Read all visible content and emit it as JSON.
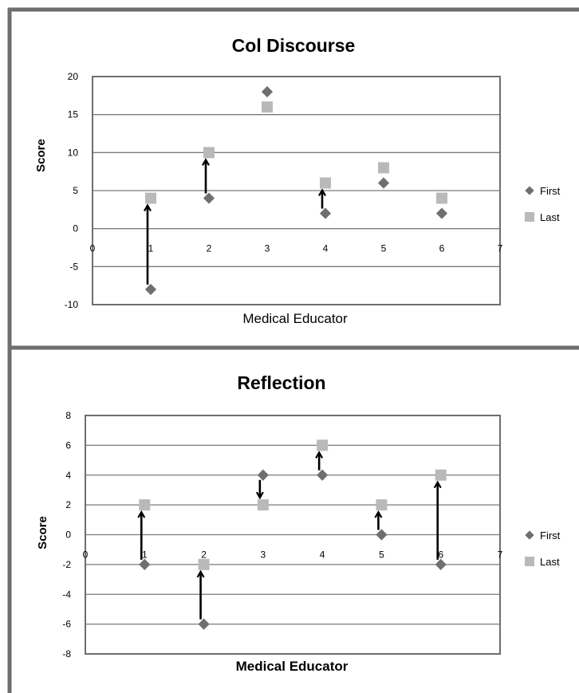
{
  "colors": {
    "first": "#6f6f6f",
    "last": "#b9b9b9",
    "arrow": "#000000",
    "frame": "#6e6e6e",
    "grid": "#7a7a7a"
  },
  "chart_data": [
    {
      "type": "scatter",
      "title": "Col Discourse",
      "xlabel": "Medical Educator",
      "ylabel": "Score",
      "xlim": [
        0,
        7
      ],
      "ylim": [
        -10,
        20
      ],
      "xticks": [
        0,
        1,
        2,
        3,
        4,
        5,
        6,
        7
      ],
      "yticks": [
        -10,
        -5,
        0,
        5,
        10,
        15,
        20
      ],
      "grid": true,
      "legend_position": "right",
      "series": [
        {
          "name": "First",
          "marker": "diamond",
          "x": [
            1,
            2,
            3,
            4,
            5,
            6
          ],
          "y": [
            -8,
            4,
            18,
            2,
            6,
            2
          ]
        },
        {
          "name": "Last",
          "marker": "square",
          "x": [
            1,
            2,
            3,
            4,
            5,
            6
          ],
          "y": [
            4,
            10,
            16,
            6,
            8,
            4
          ]
        }
      ],
      "arrows": [
        {
          "x": 1,
          "from": -8,
          "to": 4
        },
        {
          "x": 2,
          "from": 4,
          "to": 10
        },
        {
          "x": 4,
          "from": 2,
          "to": 6
        }
      ]
    },
    {
      "type": "scatter",
      "title": "Reflection",
      "xlabel": "Medical Educator",
      "ylabel": "Score",
      "xlim": [
        0,
        7
      ],
      "ylim": [
        -8,
        8
      ],
      "xticks": [
        0,
        1,
        2,
        3,
        4,
        5,
        6,
        7
      ],
      "yticks": [
        -8,
        -6,
        -4,
        -2,
        0,
        2,
        4,
        6,
        8
      ],
      "grid": true,
      "legend_position": "right",
      "series": [
        {
          "name": "First",
          "marker": "diamond",
          "x": [
            1,
            2,
            3,
            4,
            5,
            6
          ],
          "y": [
            -2,
            -6,
            4,
            4,
            0,
            -2
          ]
        },
        {
          "name": "Last",
          "marker": "square",
          "x": [
            1,
            2,
            3,
            4,
            5,
            6
          ],
          "y": [
            2,
            -2,
            2,
            6,
            2,
            4
          ]
        }
      ],
      "arrows": [
        {
          "x": 1,
          "from": -2,
          "to": 2
        },
        {
          "x": 2,
          "from": -6,
          "to": -2
        },
        {
          "x": 3,
          "from": 4,
          "to": 2
        },
        {
          "x": 4,
          "from": 4,
          "to": 6
        },
        {
          "x": 5,
          "from": 0,
          "to": 2
        },
        {
          "x": 6,
          "from": -2,
          "to": 4
        }
      ]
    }
  ]
}
